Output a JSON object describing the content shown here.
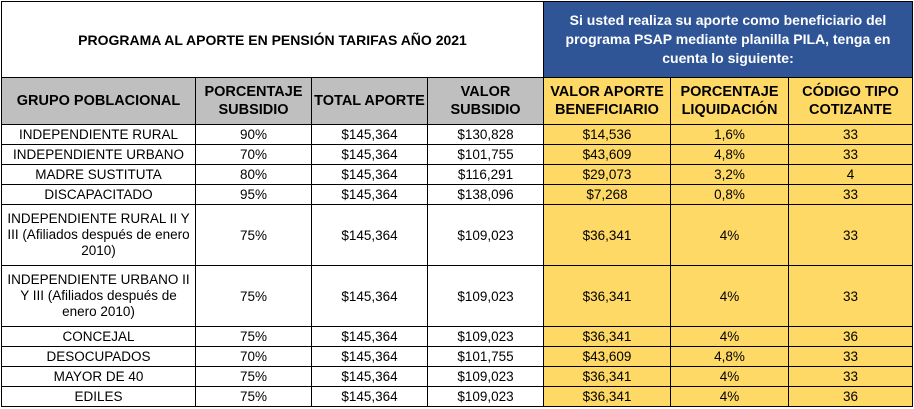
{
  "title": "PROGRAMA AL APORTE EN PENSIÓN TARIFAS AÑO 2021",
  "info_banner": "Si usted realiza su aporte como beneficiario del programa PSAP mediante planilla PILA, tenga en cuenta lo siguiente:",
  "headers": {
    "grupo": "GRUPO POBLACIONAL",
    "porcentaje_subsidio": "PORCENTAJE SUBSIDIO",
    "total_aporte": "TOTAL APORTE",
    "valor_subsidio": "VALOR SUBSIDIO",
    "valor_aporte_beneficiario": "VALOR APORTE BENEFICIARIO",
    "porcentaje_liquidacion": "PORCENTAJE LIQUIDACIÓN",
    "codigo_tipo_cotizante": "CÓDIGO TIPO COTIZANTE"
  },
  "rows": [
    {
      "grupo": "INDEPENDIENTE RURAL",
      "porcentaje": "90%",
      "total": "$145,364",
      "subsidio": "$130,828",
      "aporte": "$14,536",
      "liquidacion": "1,6%",
      "codigo": "33"
    },
    {
      "grupo": "INDEPENDIENTE URBANO",
      "porcentaje": "70%",
      "total": "$145,364",
      "subsidio": "$101,755",
      "aporte": "$43,609",
      "liquidacion": "4,8%",
      "codigo": "33"
    },
    {
      "grupo": "MADRE SUSTITUTA",
      "porcentaje": "80%",
      "total": "$145,364",
      "subsidio": "$116,291",
      "aporte": "$29,073",
      "liquidacion": "3,2%",
      "codigo": "4"
    },
    {
      "grupo": "DISCAPACITADO",
      "porcentaje": "95%",
      "total": "$145,364",
      "subsidio": "$138,096",
      "aporte": "$7,268",
      "liquidacion": "0,8%",
      "codigo": "33"
    },
    {
      "grupo": "INDEPENDIENTE RURAL II Y III (Afiliados después de enero 2010)",
      "porcentaje": "75%",
      "total": "$145,364",
      "subsidio": "$109,023",
      "aporte": "$36,341",
      "liquidacion": "4%",
      "codigo": "33"
    },
    {
      "grupo": "INDEPENDIENTE URBANO II Y III (Afiliados después de enero 2010)",
      "porcentaje": "75%",
      "total": "$145,364",
      "subsidio": "$109,023",
      "aporte": "$36,341",
      "liquidacion": "4%",
      "codigo": "33"
    },
    {
      "grupo": "CONCEJAL",
      "porcentaje": "75%",
      "total": "$145,364",
      "subsidio": "$109,023",
      "aporte": "$36,341",
      "liquidacion": "4%",
      "codigo": "36"
    },
    {
      "grupo": "DESOCUPADOS",
      "porcentaje": "70%",
      "total": "$145,364",
      "subsidio": "$101,755",
      "aporte": "$43,609",
      "liquidacion": "4,8%",
      "codigo": "33"
    },
    {
      "grupo": "MAYOR DE 40",
      "porcentaje": "75%",
      "total": "$145,364",
      "subsidio": "$109,023",
      "aporte": "$36,341",
      "liquidacion": "4%",
      "codigo": "33"
    },
    {
      "grupo": "EDILES",
      "porcentaje": "75%",
      "total": "$145,364",
      "subsidio": "$109,023",
      "aporte": "$36,341",
      "liquidacion": "4%",
      "codigo": "36"
    }
  ],
  "colors": {
    "banner_blue": "#2f5597",
    "header_gray": "#bfbfbf",
    "highlight_yellow": "#ffd966"
  }
}
